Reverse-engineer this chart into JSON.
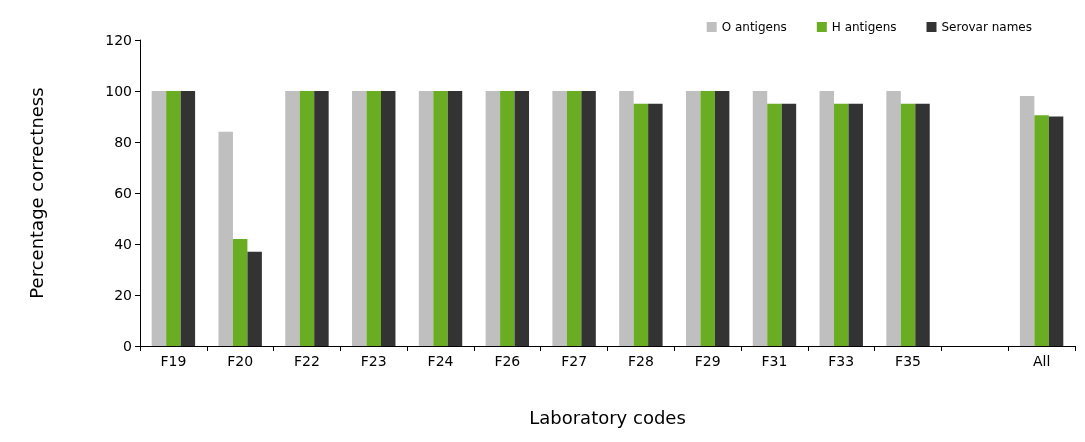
{
  "chart_data": {
    "type": "bar",
    "xlabel": "Laboratory codes",
    "ylabel": "Percentage correctness",
    "categories": [
      "F19",
      "F20",
      "F22",
      "F23",
      "F24",
      "F26",
      "F27",
      "F28",
      "F29",
      "F31",
      "F33",
      "F35",
      null,
      "All"
    ],
    "series": [
      {
        "name": "O antigens",
        "color": "#bfbfbf",
        "values": [
          100,
          84,
          100,
          100,
          100,
          100,
          100,
          100,
          100,
          100,
          100,
          100,
          null,
          98
        ]
      },
      {
        "name": "H antigens",
        "color": "#6aad23",
        "values": [
          100,
          42,
          100,
          100,
          100,
          100,
          100,
          95,
          100,
          95,
          95,
          95,
          null,
          90.5
        ]
      },
      {
        "name": "Serovar names",
        "color": "#333333",
        "values": [
          100,
          37,
          100,
          100,
          100,
          100,
          100,
          95,
          100,
          95,
          95,
          95,
          null,
          90
        ]
      }
    ],
    "ylim": [
      0,
      120
    ],
    "yticks": [
      0,
      20,
      40,
      60,
      80,
      100,
      120
    ],
    "grid": false,
    "legend": "top right"
  }
}
